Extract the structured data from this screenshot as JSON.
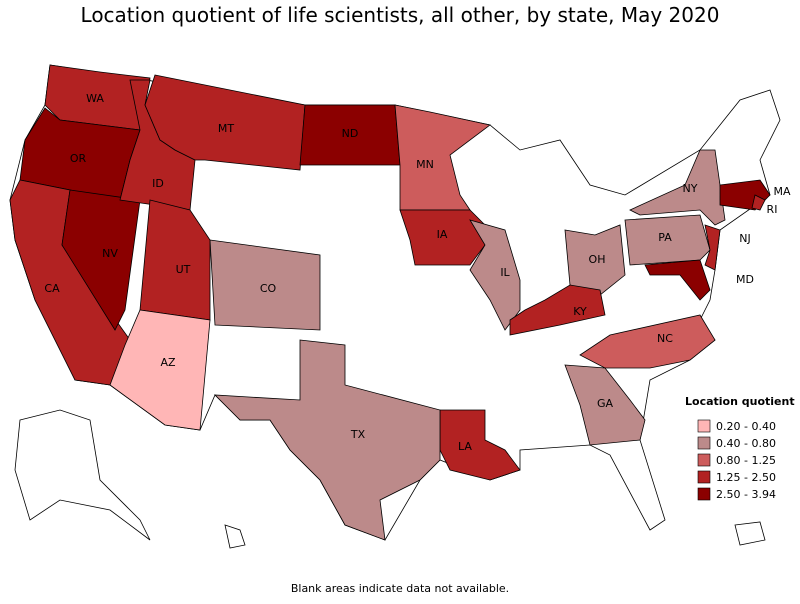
{
  "title": "Location quotient of life scientists, all other, by state, May 2020",
  "legend": {
    "title": "Location quotient",
    "items": [
      {
        "label": "0.20 - 0.40",
        "color": "#ffb6b6"
      },
      {
        "label": "0.40 - 0.80",
        "color": "#bc8a8a"
      },
      {
        "label": "0.80 - 1.25",
        "color": "#cd5c5c"
      },
      {
        "label": "1.25 - 2.50",
        "color": "#b22222"
      },
      {
        "label": "2.50 - 3.94",
        "color": "#8b0000"
      }
    ]
  },
  "states": [
    {
      "label": "WA",
      "color": "#b22222"
    },
    {
      "label": "OR",
      "color": "#8b0000"
    },
    {
      "label": "CA",
      "color": "#b22222"
    },
    {
      "label": "NV",
      "color": "#8b0000"
    },
    {
      "label": "ID",
      "color": "#b22222"
    },
    {
      "label": "MT",
      "color": "#b22222"
    },
    {
      "label": "ND",
      "color": "#8b0000"
    },
    {
      "label": "MN",
      "color": "#cd5c5c"
    },
    {
      "label": "IA",
      "color": "#b22222"
    },
    {
      "label": "IL",
      "color": "#bc8a8a"
    },
    {
      "label": "OH",
      "color": "#bc8a8a"
    },
    {
      "label": "KY",
      "color": "#b22222"
    },
    {
      "label": "NC",
      "color": "#cd5c5c"
    },
    {
      "label": "GA",
      "color": "#bc8a8a"
    },
    {
      "label": "LA",
      "color": "#b22222"
    },
    {
      "label": "TX",
      "color": "#bc8a8a"
    },
    {
      "label": "CO",
      "color": "#bc8a8a"
    },
    {
      "label": "UT",
      "color": "#b22222"
    },
    {
      "label": "AZ",
      "color": "#ffb6b6"
    },
    {
      "label": "NY",
      "color": "#bc8a8a"
    },
    {
      "label": "PA",
      "color": "#bc8a8a"
    },
    {
      "label": "NJ",
      "color": "#b22222"
    },
    {
      "label": "MD",
      "color": "#8b0000"
    },
    {
      "label": "MA",
      "color": "#8b0000"
    },
    {
      "label": "RI",
      "color": "#b22222"
    }
  ],
  "footnote": "Blank areas indicate data not available."
}
